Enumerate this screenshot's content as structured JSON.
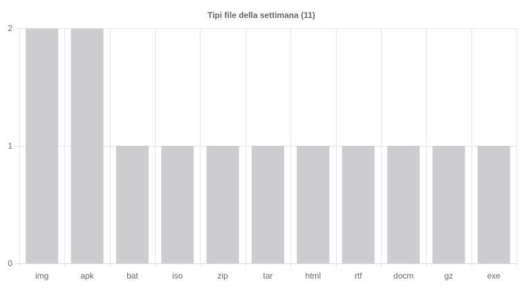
{
  "chart_data": {
    "type": "bar",
    "title": "Tipi file della settimana (11)",
    "xlabel": "",
    "ylabel": "",
    "categories": [
      "img",
      "apk",
      "bat",
      "iso",
      "zip",
      "tar",
      "html",
      "rtf",
      "docm",
      "gz",
      "exe"
    ],
    "values": [
      2,
      2,
      1,
      1,
      1,
      1,
      1,
      1,
      1,
      1,
      1
    ],
    "ylim": [
      0,
      2
    ],
    "yticks": [
      0,
      1,
      2
    ],
    "grid": true,
    "legend": "none",
    "colors": {
      "bar": "#cdcdcf",
      "grid": "#e5e5e5",
      "text": "#666666"
    }
  }
}
